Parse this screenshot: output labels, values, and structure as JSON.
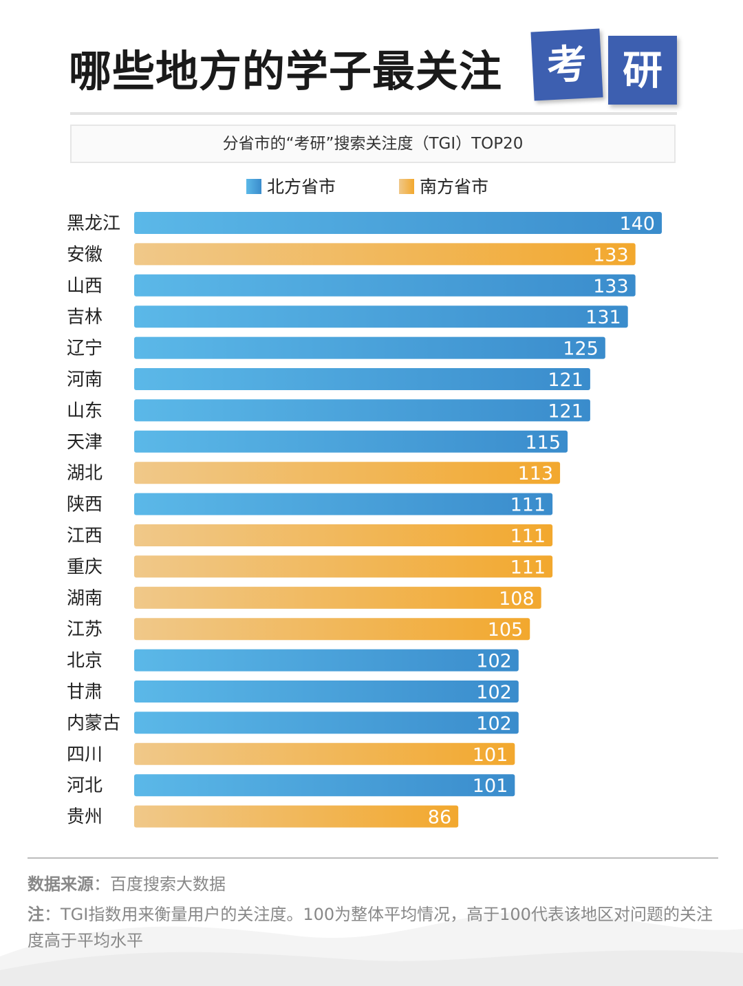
{
  "header": {
    "title_main": "哪些地方的学子最关注",
    "tag_1": "考",
    "tag_2": "研"
  },
  "subtitle": "分省市的“考研”搜索关注度（TGI）TOP20",
  "legend": {
    "north_label": "北方省市",
    "south_label": "南方省市"
  },
  "colors": {
    "north_start": "#5bb8e8",
    "north_end": "#3a8ccc",
    "south_start": "#f0c889",
    "south_end": "#f2a82e",
    "title_tag": "#3d5fb0"
  },
  "chart_data": {
    "type": "bar",
    "orientation": "horizontal",
    "title": "分省市的“考研”搜索关注度（TGI）TOP20",
    "categories": [
      "黑龙江",
      "安徽",
      "山西",
      "吉林",
      "辽宁",
      "河南",
      "山东",
      "天津",
      "湖北",
      "陕西",
      "江西",
      "重庆",
      "湖南",
      "江苏",
      "北京",
      "甘肃",
      "内蒙古",
      "四川",
      "河北",
      "贵州"
    ],
    "values": [
      140,
      133,
      133,
      131,
      125,
      121,
      121,
      115,
      113,
      111,
      111,
      111,
      108,
      105,
      102,
      102,
      102,
      101,
      101,
      86
    ],
    "groups": [
      "北方省市",
      "南方省市",
      "北方省市",
      "北方省市",
      "北方省市",
      "北方省市",
      "北方省市",
      "北方省市",
      "南方省市",
      "北方省市",
      "南方省市",
      "南方省市",
      "南方省市",
      "南方省市",
      "北方省市",
      "北方省市",
      "北方省市",
      "南方省市",
      "北方省市",
      "南方省市"
    ],
    "xlim": [
      0,
      140
    ],
    "grid": false,
    "legend_position": "top-center"
  },
  "footer": {
    "source_label": "数据来源",
    "source_text": "：百度搜索大数据",
    "note_label": "注",
    "note_text": "：TGI指数用来衡量用户的关注度。100为整体平均情况，高于100代表该地区对问题的关注度高于平均水平"
  }
}
